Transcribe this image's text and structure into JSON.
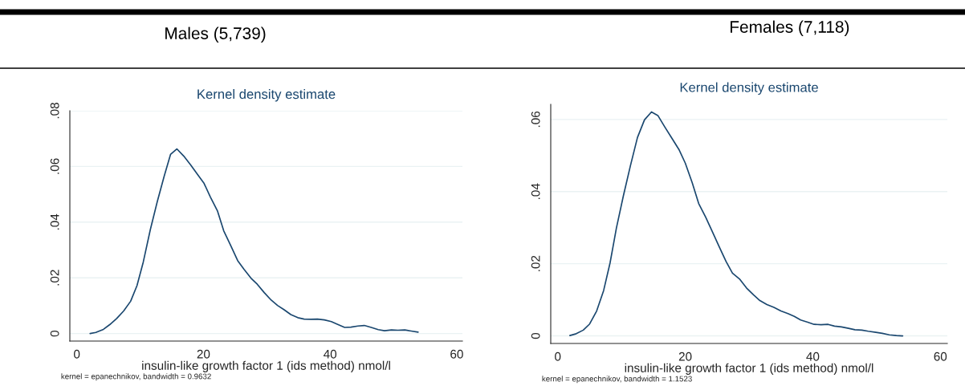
{
  "chart_data": [
    {
      "type": "line",
      "title": "Males (5,739)",
      "subtitle": "Kernel density estimate",
      "xlabel": "insulin-like growth factor 1 (ids method) nmol/l",
      "annotations": [
        "kernel = epanechnikov, bandwidth = 0.9632"
      ],
      "xlim": [
        -1.1,
        60.9
      ],
      "ylim": [
        -0.0027,
        0.08
      ],
      "xticks": [
        0,
        20,
        40,
        60
      ],
      "yticks": [
        {
          "value": 0,
          "label": "0"
        },
        {
          "value": 0.02,
          "label": ".02"
        },
        {
          "value": 0.04,
          "label": ".04"
        },
        {
          "value": 0.06,
          "label": ".06"
        },
        {
          "value": 0.08,
          "label": ".08"
        }
      ],
      "grid": "y",
      "marker": "none",
      "line_style": "solid",
      "series": [
        {
          "color": "#1a476f",
          "x": [
            2.1,
            3.0,
            4.2,
            5.2,
            6.3,
            7.4,
            8.5,
            9.5,
            10.5,
            11.6,
            12.7,
            13.8,
            14.8,
            15.8,
            16.9,
            18.0,
            19.1,
            20.1,
            21.1,
            22.2,
            23.2,
            24.3,
            25.4,
            26.4,
            27.5,
            28.5,
            29.6,
            30.7,
            31.7,
            32.7,
            33.8,
            34.9,
            35.9,
            37.0,
            38.0,
            39.1,
            40.2,
            41.2,
            42.3,
            43.3,
            44.4,
            45.4,
            46.5,
            47.6,
            48.6,
            49.7,
            50.7,
            51.8,
            52.8,
            53.9
          ],
          "values": [
            0,
            0.0004,
            0.0015,
            0.0032,
            0.0054,
            0.0081,
            0.0116,
            0.0172,
            0.0257,
            0.0372,
            0.0473,
            0.0565,
            0.0643,
            0.0663,
            0.0637,
            0.0605,
            0.057,
            0.0539,
            0.049,
            0.0441,
            0.0369,
            0.0316,
            0.0262,
            0.0231,
            0.0199,
            0.0177,
            0.0147,
            0.012,
            0.0101,
            0.0086,
            0.0068,
            0.0057,
            0.0052,
            0.0051,
            0.0052,
            0.0049,
            0.0043,
            0.0033,
            0.0022,
            0.0023,
            0.0027,
            0.0029,
            0.0022,
            0.0014,
            0.001,
            0.0013,
            0.0012,
            0.0013,
            0.0009,
            0.0005
          ]
        }
      ]
    },
    {
      "type": "line",
      "title": "Females (7,118)",
      "subtitle": "Kernel density estimate",
      "xlabel": "insulin-like growth factor 1 (ids method) nmol/l",
      "annotations": [
        "kernel = epanechnikov, bandwidth = 1.1523"
      ],
      "xlim": [
        -1.1,
        61.1
      ],
      "ylim": [
        -0.0021,
        0.0642
      ],
      "xticks": [
        0,
        20,
        40,
        60
      ],
      "yticks": [
        {
          "value": 0,
          "label": "0"
        },
        {
          "value": 0.02,
          "label": ".02"
        },
        {
          "value": 0.04,
          "label": ".04"
        },
        {
          "value": 0.06,
          "label": ".06"
        }
      ],
      "grid": "y",
      "marker": "none",
      "line_style": "solid",
      "series": [
        {
          "color": "#1a476f",
          "x": [
            1.9,
            2.9,
            4.0,
            5.0,
            6.1,
            7.2,
            8.2,
            9.2,
            10.3,
            11.4,
            12.5,
            13.6,
            14.7,
            15.7,
            16.8,
            17.9,
            19.0,
            20.0,
            21.1,
            22.1,
            23.2,
            24.3,
            25.3,
            26.4,
            27.4,
            28.5,
            29.6,
            30.7,
            31.7,
            32.8,
            33.9,
            35.0,
            36.1,
            37.1,
            38.1,
            39.2,
            40.2,
            41.3,
            42.4,
            43.4,
            44.5,
            45.6,
            46.6,
            47.7,
            48.7,
            49.9,
            50.9,
            52.0,
            53.1,
            54.1
          ],
          "values": [
            0.0001,
            0.0006,
            0.0016,
            0.0033,
            0.0069,
            0.0126,
            0.0202,
            0.0299,
            0.0389,
            0.0472,
            0.055,
            0.0599,
            0.0621,
            0.0611,
            0.0579,
            0.0548,
            0.0517,
            0.0479,
            0.0424,
            0.0367,
            0.0329,
            0.0287,
            0.0248,
            0.0206,
            0.0174,
            0.0158,
            0.0133,
            0.0114,
            0.0098,
            0.0087,
            0.0079,
            0.0069,
            0.0062,
            0.0054,
            0.0044,
            0.0038,
            0.0032,
            0.0031,
            0.0032,
            0.0027,
            0.0025,
            0.0021,
            0.0017,
            0.0016,
            0.0013,
            0.001,
            0.0007,
            0.0003,
            0.0001,
            0
          ]
        }
      ]
    }
  ]
}
